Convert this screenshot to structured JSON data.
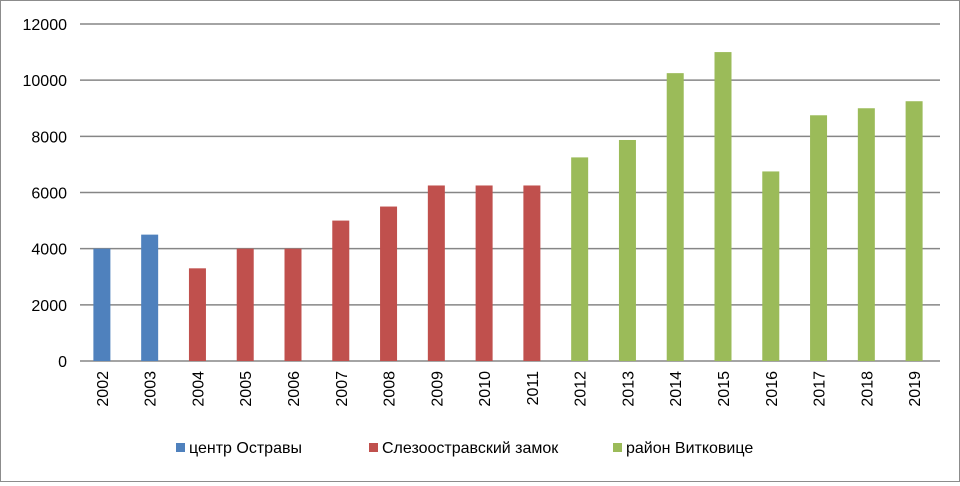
{
  "chart_data": {
    "type": "bar",
    "title": "",
    "xlabel": "",
    "ylabel": "",
    "ylim": [
      0,
      12000
    ],
    "yticks": [
      0,
      2000,
      4000,
      6000,
      8000,
      10000,
      12000
    ],
    "grid": true,
    "legend_position": "bottom",
    "categories": [
      "2002",
      "2003",
      "2004",
      "2005",
      "2006",
      "2007",
      "2008",
      "2009",
      "2010",
      "2011",
      "2012",
      "2013",
      "2014",
      "2015",
      "2016",
      "2017",
      "2018",
      "2019"
    ],
    "series": [
      {
        "name": "центр Остравы",
        "color": "#4f81bd",
        "values": [
          4000,
          4500,
          null,
          null,
          null,
          null,
          null,
          null,
          null,
          null,
          null,
          null,
          null,
          null,
          null,
          null,
          null,
          null
        ]
      },
      {
        "name": "Слезоостравский замок",
        "color": "#c0504d",
        "values": [
          null,
          null,
          3300,
          4000,
          4000,
          5000,
          5500,
          6250,
          6250,
          6250,
          null,
          null,
          null,
          null,
          null,
          null,
          null,
          null
        ]
      },
      {
        "name": "район Витковице",
        "color": "#9bbb59",
        "values": [
          null,
          null,
          null,
          null,
          null,
          null,
          null,
          null,
          null,
          null,
          7250,
          7870,
          10250,
          11000,
          6750,
          8750,
          9000,
          9250
        ]
      }
    ]
  }
}
